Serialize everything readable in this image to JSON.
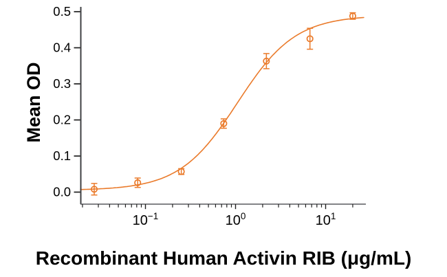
{
  "chart_data": {
    "type": "scatter",
    "x_scale": "log",
    "xlabel": "Recombinant Human Activin RIB (μg/mL)",
    "ylabel": "Mean OD",
    "xlim": [
      0.019,
      28
    ],
    "ylim": [
      0.0,
      0.5
    ],
    "grid": false,
    "legend": "none",
    "colors": {
      "series": "#EA7A2A",
      "axis": "#595a5e",
      "tick": "#1f1f1f",
      "text": "#000000"
    },
    "y_ticks": [
      {
        "value": 0.0,
        "label": "0.0"
      },
      {
        "value": 0.1,
        "label": "0.1"
      },
      {
        "value": 0.2,
        "label": "0.2"
      },
      {
        "value": 0.3,
        "label": "0.3"
      },
      {
        "value": 0.4,
        "label": "0.4"
      },
      {
        "value": 0.5,
        "label": "0.5"
      }
    ],
    "x_major_ticks": [
      {
        "value": 0.1,
        "base": "10",
        "exp": "−1"
      },
      {
        "value": 1,
        "base": "10",
        "exp": "0"
      },
      {
        "value": 10,
        "base": "10",
        "exp": "1"
      }
    ],
    "x_minor_ticks": [
      0.02,
      0.03,
      0.04,
      0.05,
      0.06,
      0.07,
      0.08,
      0.09,
      0.2,
      0.3,
      0.4,
      0.5,
      0.6,
      0.7,
      0.8,
      0.9,
      2,
      3,
      4,
      5,
      6,
      7,
      8,
      9,
      20
    ],
    "series": [
      {
        "marker": "open-circle",
        "points": [
          {
            "x": 0.027,
            "y": 0.008,
            "err": 0.016
          },
          {
            "x": 0.082,
            "y": 0.026,
            "err": 0.013
          },
          {
            "x": 0.25,
            "y": 0.057,
            "err": 0.008
          },
          {
            "x": 0.74,
            "y": 0.19,
            "err": 0.013
          },
          {
            "x": 2.2,
            "y": 0.363,
            "err": 0.021
          },
          {
            "x": 6.7,
            "y": 0.425,
            "err": 0.029
          },
          {
            "x": 20,
            "y": 0.488,
            "err": 0.009
          }
        ]
      }
    ],
    "curve_fit": {
      "model": "4PL",
      "bottom": 0.005,
      "top": 0.49,
      "ec50": 1.05,
      "hill": 1.35,
      "x_start": 0.019,
      "x_end": 26.5
    }
  }
}
